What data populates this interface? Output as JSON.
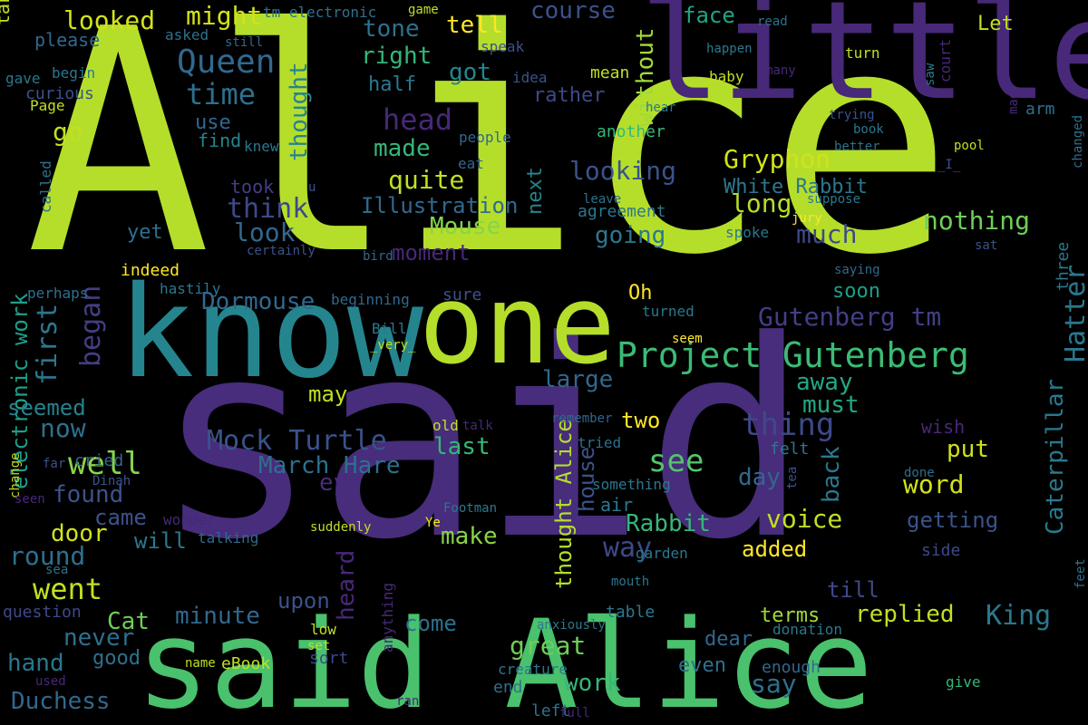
{
  "words": [
    {
      "text": "Alice",
      "color": "#b5de2b"
    },
    {
      "text": "said",
      "color": "#472d7b"
    },
    {
      "text": "little",
      "color": "#482878"
    },
    {
      "text": "know",
      "color": "#25858e"
    },
    {
      "text": "one",
      "color": "#b5de2b"
    },
    {
      "text": "said Alice",
      "color": "#4ac16d"
    },
    {
      "text": "Project Gutenberg",
      "color": "#3bbb75"
    },
    {
      "text": "Queen",
      "color": "#31688e"
    },
    {
      "text": "time",
      "color": "#2d708e"
    },
    {
      "text": "head",
      "color": "#482878"
    },
    {
      "text": "looked",
      "color": "#d2e21b"
    },
    {
      "text": "might",
      "color": "#d2e21b"
    },
    {
      "text": "tone",
      "color": "#2d708e"
    },
    {
      "text": "tell",
      "color": "#fde725"
    },
    {
      "text": "course",
      "color": "#3b528b"
    },
    {
      "text": "face",
      "color": "#20a486"
    },
    {
      "text": "Let",
      "color": "#c2df23"
    },
    {
      "text": "right",
      "color": "#35b779"
    },
    {
      "text": "got",
      "color": "#25858e"
    },
    {
      "text": "half",
      "color": "#2a788e"
    },
    {
      "text": "rather",
      "color": "#3e4989"
    },
    {
      "text": "without",
      "color": "#a0da39"
    },
    {
      "text": "thought",
      "color": "#26828e"
    },
    {
      "text": "made",
      "color": "#35b779"
    },
    {
      "text": "quite",
      "color": "#c2df23"
    },
    {
      "text": "looking",
      "color": "#3b528b"
    },
    {
      "text": "Gryphon",
      "color": "#d2e21b"
    },
    {
      "text": "White Rabbit",
      "color": "#2a788e"
    },
    {
      "text": "Illustration",
      "color": "#31688e"
    },
    {
      "text": "Mouse",
      "color": "#86d549"
    },
    {
      "text": "think",
      "color": "#3e4989"
    },
    {
      "text": "look",
      "color": "#31688e"
    },
    {
      "text": "long",
      "color": "#b5de2b"
    },
    {
      "text": "much",
      "color": "#3e4989"
    },
    {
      "text": "going",
      "color": "#2a788e"
    },
    {
      "text": "nothing",
      "color": "#6ece58"
    },
    {
      "text": "moment",
      "color": "#482878"
    },
    {
      "text": "Dormouse",
      "color": "#31688e"
    },
    {
      "text": "Gutenberg tm",
      "color": "#433e85"
    },
    {
      "text": "Hatter",
      "color": "#2a788e"
    },
    {
      "text": "first",
      "color": "#2a788e"
    },
    {
      "text": "began",
      "color": "#433e85"
    },
    {
      "text": "electronic work",
      "color": "#1f9e89"
    },
    {
      "text": "large",
      "color": "#31688e"
    },
    {
      "text": "away",
      "color": "#22a884"
    },
    {
      "text": "must",
      "color": "#22a884"
    },
    {
      "text": "may",
      "color": "#c2df23"
    },
    {
      "text": "seemed",
      "color": "#26828e"
    },
    {
      "text": "now",
      "color": "#2d708e"
    },
    {
      "text": "thing",
      "color": "#3e4989"
    },
    {
      "text": "two",
      "color": "#fde725"
    },
    {
      "text": "Mock Turtle",
      "color": "#3b528b"
    },
    {
      "text": "March Hare",
      "color": "#2d708e"
    },
    {
      "text": "last",
      "color": "#35b779"
    },
    {
      "text": "well",
      "color": "#86d549"
    },
    {
      "text": "see",
      "color": "#52c569"
    },
    {
      "text": "put",
      "color": "#d2e21b"
    },
    {
      "text": "back",
      "color": "#2a788e"
    },
    {
      "text": "day",
      "color": "#31688e"
    },
    {
      "text": "word",
      "color": "#d2e21b"
    },
    {
      "text": "Caterpillar",
      "color": "#2a788e"
    },
    {
      "text": "found",
      "color": "#3b528b"
    },
    {
      "text": "eye",
      "color": "#472d7b"
    },
    {
      "text": "door",
      "color": "#d2e21b"
    },
    {
      "text": "came",
      "color": "#3b528b"
    },
    {
      "text": "voice",
      "color": "#c2df23"
    },
    {
      "text": "getting",
      "color": "#3b528b"
    },
    {
      "text": "round",
      "color": "#2d708e"
    },
    {
      "text": "make",
      "color": "#86d549"
    },
    {
      "text": "Rabbit",
      "color": "#35b779"
    },
    {
      "text": "way",
      "color": "#3e4989"
    },
    {
      "text": "added",
      "color": "#fde725"
    },
    {
      "text": "will",
      "color": "#2a788e"
    },
    {
      "text": "went",
      "color": "#c2df23"
    },
    {
      "text": "heard",
      "color": "#482878"
    },
    {
      "text": "upon",
      "color": "#3b528b"
    },
    {
      "text": "minute",
      "color": "#31688e"
    },
    {
      "text": "King",
      "color": "#2a788e"
    },
    {
      "text": "replied",
      "color": "#c2df23"
    },
    {
      "text": "never",
      "color": "#2d708e"
    },
    {
      "text": "Cat",
      "color": "#6ece58"
    },
    {
      "text": "come",
      "color": "#2d708e"
    },
    {
      "text": "great",
      "color": "#6ece58"
    },
    {
      "text": "dear",
      "color": "#31688e"
    },
    {
      "text": "terms",
      "color": "#a0da39"
    },
    {
      "text": "till",
      "color": "#3e4989"
    },
    {
      "text": "hand",
      "color": "#2a788e"
    },
    {
      "text": "good",
      "color": "#2d708e"
    },
    {
      "text": "work",
      "color": "#35b779"
    },
    {
      "text": "say",
      "color": "#2d708e"
    },
    {
      "text": "even",
      "color": "#2d708e"
    },
    {
      "text": "Duchess",
      "color": "#31688e"
    },
    {
      "text": "thought Alice",
      "color": "#b5de2b"
    },
    {
      "text": "please",
      "color": "#31688e"
    },
    {
      "text": "take",
      "color": "#c2df23"
    },
    {
      "text": "curious",
      "color": "#3b528b"
    },
    {
      "text": "begin",
      "color": "#2a788e"
    },
    {
      "text": "gave",
      "color": "#2a788e"
    },
    {
      "text": "Page",
      "color": "#c2df23"
    },
    {
      "text": "go",
      "color": "#c2df23"
    },
    {
      "text": "use",
      "color": "#31688e"
    },
    {
      "text": "find",
      "color": "#25858e"
    },
    {
      "text": "knew",
      "color": "#2a788e"
    },
    {
      "text": "called",
      "color": "#2d708e"
    },
    {
      "text": "took",
      "color": "#433e85"
    },
    {
      "text": "yet",
      "color": "#2d708e"
    },
    {
      "text": "indeed",
      "color": "#fde725"
    },
    {
      "text": "hastily",
      "color": "#2a788e"
    },
    {
      "text": "perhaps",
      "color": "#2d708e"
    },
    {
      "text": "beginning",
      "color": "#31688e"
    },
    {
      "text": "sure",
      "color": "#3b528b"
    },
    {
      "text": "next",
      "color": "#25858e"
    },
    {
      "text": "Oh",
      "color": "#fde725"
    },
    {
      "text": "soon",
      "color": "#1f9e89"
    },
    {
      "text": "three",
      "color": "#2a788e"
    },
    {
      "text": "court",
      "color": "#482878"
    },
    {
      "text": "arm",
      "color": "#2d708e"
    },
    {
      "text": "mean",
      "color": "#c2df23"
    },
    {
      "text": "idea",
      "color": "#3b528b"
    },
    {
      "text": "baby",
      "color": "#c2df23"
    },
    {
      "text": "many",
      "color": "#482878"
    },
    {
      "text": "turn",
      "color": "#c2df23"
    },
    {
      "text": "read",
      "color": "#2d708e"
    },
    {
      "text": "tm electronic",
      "color": "#2d708e"
    },
    {
      "text": "game",
      "color": "#c2df23"
    },
    {
      "text": "asked",
      "color": "#2d708e"
    },
    {
      "text": "still",
      "color": "#31688e"
    },
    {
      "text": "speak",
      "color": "#3b528b"
    },
    {
      "text": "happen",
      "color": "#2a788e"
    },
    {
      "text": "another",
      "color": "#35b779"
    },
    {
      "text": "people",
      "color": "#31688e"
    },
    {
      "text": "eat",
      "color": "#31688e"
    },
    {
      "text": "hear",
      "color": "#2a788e"
    },
    {
      "text": "trying",
      "color": "#3b528b"
    },
    {
      "text": "book",
      "color": "#2a788e"
    },
    {
      "text": "better",
      "color": "#2d708e"
    },
    {
      "text": "pool",
      "color": "#c2df23"
    },
    {
      "text": "_I_",
      "color": "#3b528b"
    },
    {
      "text": "changed",
      "color": "#2d708e"
    },
    {
      "text": "suppose",
      "color": "#2a788e"
    },
    {
      "text": "leave",
      "color": "#2d708e"
    },
    {
      "text": "agreement",
      "color": "#2a788e"
    },
    {
      "text": "jury",
      "color": "#fde725"
    },
    {
      "text": "spoke",
      "color": "#2a788e"
    },
    {
      "text": "sat",
      "color": "#3b528b"
    },
    {
      "text": "saying",
      "color": "#31688e"
    },
    {
      "text": "certainly",
      "color": "#3b528b"
    },
    {
      "text": "bird",
      "color": "#31688e"
    },
    {
      "text": "u",
      "color": "#3b528b"
    },
    {
      "text": "turned",
      "color": "#2a788e"
    },
    {
      "text": "seem",
      "color": "#fde725"
    },
    {
      "text": "Bill",
      "color": "#2a788e"
    },
    {
      "text": "_very_",
      "color": "#c2df23"
    },
    {
      "text": "remember",
      "color": "#31688e"
    },
    {
      "text": "tried",
      "color": "#2d708e"
    },
    {
      "text": "old",
      "color": "#c2df23"
    },
    {
      "text": "talk",
      "color": "#482878"
    },
    {
      "text": "wish",
      "color": "#482878"
    },
    {
      "text": "felt",
      "color": "#2a788e"
    },
    {
      "text": "something",
      "color": "#2a788e"
    },
    {
      "text": "tea",
      "color": "#3b528b"
    },
    {
      "text": "house",
      "color": "#3b528b"
    },
    {
      "text": "air",
      "color": "#2a788e"
    },
    {
      "text": "done",
      "color": "#2d708e"
    },
    {
      "text": "cried",
      "color": "#31688e"
    },
    {
      "text": "far",
      "color": "#3b528b"
    },
    {
      "text": "change",
      "color": "#c2df23"
    },
    {
      "text": "seen",
      "color": "#482878"
    },
    {
      "text": "Dinah",
      "color": "#3b528b"
    },
    {
      "text": "wonder",
      "color": "#482878"
    },
    {
      "text": "Footman",
      "color": "#2a788e"
    },
    {
      "text": "suddenly",
      "color": "#c2df23"
    },
    {
      "text": "Ye",
      "color": "#fde725"
    },
    {
      "text": "talking",
      "color": "#31688e"
    },
    {
      "text": "sea",
      "color": "#2d708e"
    },
    {
      "text": "garden",
      "color": "#2a788e"
    },
    {
      "text": "side",
      "color": "#3e4989"
    },
    {
      "text": "feet",
      "color": "#2d708e"
    },
    {
      "text": "mouth",
      "color": "#2a788e"
    },
    {
      "text": "anything",
      "color": "#482878"
    },
    {
      "text": "question",
      "color": "#3e4989"
    },
    {
      "text": "table",
      "color": "#2a788e"
    },
    {
      "text": "low",
      "color": "#c2df23"
    },
    {
      "text": "anxiously",
      "color": "#2a788e"
    },
    {
      "text": "donation",
      "color": "#2a788e"
    },
    {
      "text": "set",
      "color": "#c2df23"
    },
    {
      "text": "sort",
      "color": "#3e4989"
    },
    {
      "text": "enough",
      "color": "#31688e"
    },
    {
      "text": "name",
      "color": "#c2df23"
    },
    {
      "text": "eBook",
      "color": "#c2df23"
    },
    {
      "text": "creature",
      "color": "#2a788e"
    },
    {
      "text": "end",
      "color": "#2d708e"
    },
    {
      "text": "used",
      "color": "#482878"
    },
    {
      "text": "ran",
      "color": "#482878"
    },
    {
      "text": "left",
      "color": "#2d708e"
    },
    {
      "text": "full",
      "color": "#482878"
    },
    {
      "text": "give",
      "color": "#35b779"
    },
    {
      "text": "mad",
      "color": "#482878"
    },
    {
      "text": "saw",
      "color": "#2a788e"
    }
  ]
}
